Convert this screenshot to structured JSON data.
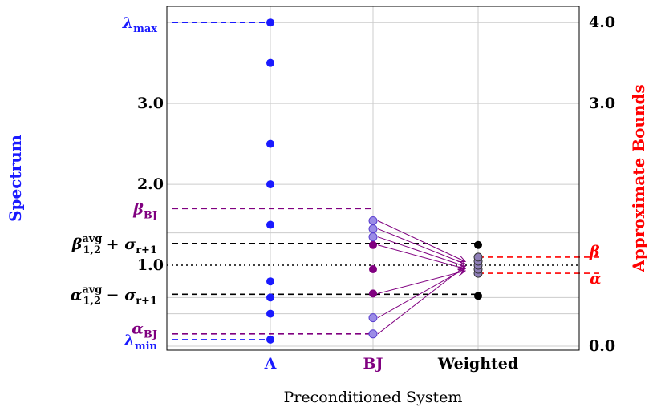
{
  "chart_data": {
    "type": "scatter",
    "xlabel": "Preconditioned System",
    "ylabel_left": "Spectrum",
    "ylabel_right": "Approximate Bounds",
    "grid": true,
    "categories": [
      "A",
      "BJ",
      "Weighted"
    ],
    "category_colors": [
      "#1a1aff",
      "#800080",
      "#000000"
    ],
    "left_ticks": [
      "1.0",
      "2.0",
      "3.0"
    ],
    "left_tick_values": [
      1.0,
      2.0,
      3.0
    ],
    "right_ticks": [
      "0.0",
      "3.0",
      "4.0"
    ],
    "right_tick_values": [
      0.0,
      3.0,
      4.0
    ],
    "ylim": [
      -0.05,
      4.2
    ],
    "series": [
      {
        "category": "A",
        "color": "#1a1aff",
        "values": [
          0.08,
          0.4,
          0.6,
          0.8,
          1.5,
          2.0,
          2.5,
          3.5,
          4.0
        ]
      },
      {
        "category": "BJ",
        "color": "#800080",
        "outline": "#9b8ce6",
        "values": [
          0.15,
          0.35,
          0.65,
          0.95,
          1.25,
          1.35,
          1.45,
          1.55
        ]
      },
      {
        "category": "Weighted",
        "color": "#000000",
        "values": [
          0.62,
          1.25,
          0.9,
          0.95,
          1.0,
          1.05,
          1.1
        ]
      }
    ],
    "reference_lines": [
      {
        "value": 4.0,
        "color": "#1a1aff",
        "style": "dashed",
        "extent": "A"
      },
      {
        "value": 0.08,
        "color": "#1a1aff",
        "style": "dashed",
        "extent": "A"
      },
      {
        "value": 1.7,
        "color": "#800080",
        "style": "dashed",
        "extent": "BJ"
      },
      {
        "value": 0.15,
        "color": "#800080",
        "style": "dashed",
        "extent": "BJ"
      },
      {
        "value": 1.27,
        "color": "#000000",
        "style": "dashed",
        "extent": "Weighted"
      },
      {
        "value": 0.64,
        "color": "#000000",
        "style": "dashed",
        "extent": "Weighted"
      },
      {
        "value": 1.0,
        "color": "#000000",
        "style": "dotted",
        "extent": "full"
      },
      {
        "value": 1.1,
        "color": "#ff0000",
        "style": "dashed",
        "extent": "right"
      },
      {
        "value": 0.9,
        "color": "#ff0000",
        "style": "dashed",
        "extent": "right"
      }
    ],
    "annotations": [
      {
        "base": "λ",
        "sub": "max",
        "value": 4.0,
        "color": "#1a1aff"
      },
      {
        "base": "λ",
        "sub": "min",
        "value": 0.08,
        "color": "#1a1aff"
      },
      {
        "base": "β",
        "sub": "BJ",
        "value": 1.7,
        "color": "#800080"
      },
      {
        "base": "α",
        "sub": "BJ",
        "value": 0.22,
        "color": "#800080"
      },
      {
        "base": "β",
        "sub": "1,2",
        "sup": "avg",
        "op": "+",
        "term": "σ",
        "term_sub": "r+1",
        "value": 1.27,
        "color": "#000000"
      },
      {
        "base": "α",
        "sub": "1,2",
        "sup": "avg",
        "op": "−",
        "term": "σ",
        "term_sub": "r+1",
        "value": 0.64,
        "color": "#000000"
      },
      {
        "base": "β",
        "value": 1.18,
        "color": "#ff0000",
        "side": "right"
      },
      {
        "base": "α",
        "value": 0.84,
        "color": "#ff0000",
        "side": "right"
      }
    ],
    "arrows": [
      {
        "from_category": "BJ",
        "to_category": "Weighted",
        "from_values": [
          1.55,
          1.45,
          1.35,
          1.25
        ],
        "to_values": [
          1.0,
          1.0,
          1.0,
          1.0
        ],
        "color": "#800080"
      },
      {
        "from_category": "BJ",
        "to_category": "Weighted",
        "from_values": [
          0.15,
          0.35,
          0.65
        ],
        "to_values": [
          1.0,
          1.0,
          1.0
        ],
        "color": "#800080"
      }
    ]
  }
}
